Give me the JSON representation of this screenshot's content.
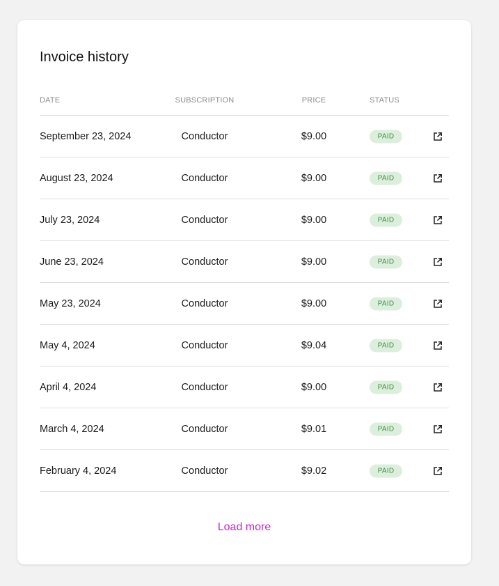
{
  "title": "Invoice history",
  "columns": {
    "date": "DATE",
    "subscription": "SUBSCRIPTION",
    "price": "PRICE",
    "status": "STATUS"
  },
  "rows": [
    {
      "date": "September 23, 2024",
      "subscription": "Conductor",
      "price": "$9.00",
      "status": "PAID"
    },
    {
      "date": "August 23, 2024",
      "subscription": "Conductor",
      "price": "$9.00",
      "status": "PAID"
    },
    {
      "date": "July 23, 2024",
      "subscription": "Conductor",
      "price": "$9.00",
      "status": "PAID"
    },
    {
      "date": "June 23, 2024",
      "subscription": "Conductor",
      "price": "$9.00",
      "status": "PAID"
    },
    {
      "date": "May 23, 2024",
      "subscription": "Conductor",
      "price": "$9.00",
      "status": "PAID"
    },
    {
      "date": "May 4, 2024",
      "subscription": "Conductor",
      "price": "$9.04",
      "status": "PAID"
    },
    {
      "date": "April 4, 2024",
      "subscription": "Conductor",
      "price": "$9.00",
      "status": "PAID"
    },
    {
      "date": "March 4, 2024",
      "subscription": "Conductor",
      "price": "$9.01",
      "status": "PAID"
    },
    {
      "date": "February 4, 2024",
      "subscription": "Conductor",
      "price": "$9.02",
      "status": "PAID"
    }
  ],
  "row_icon": "external-link-icon",
  "load_more": "Load more",
  "colors": {
    "accent": "#c71fcf",
    "paid_bg": "#dcefdc",
    "paid_text": "#3f8f45"
  }
}
